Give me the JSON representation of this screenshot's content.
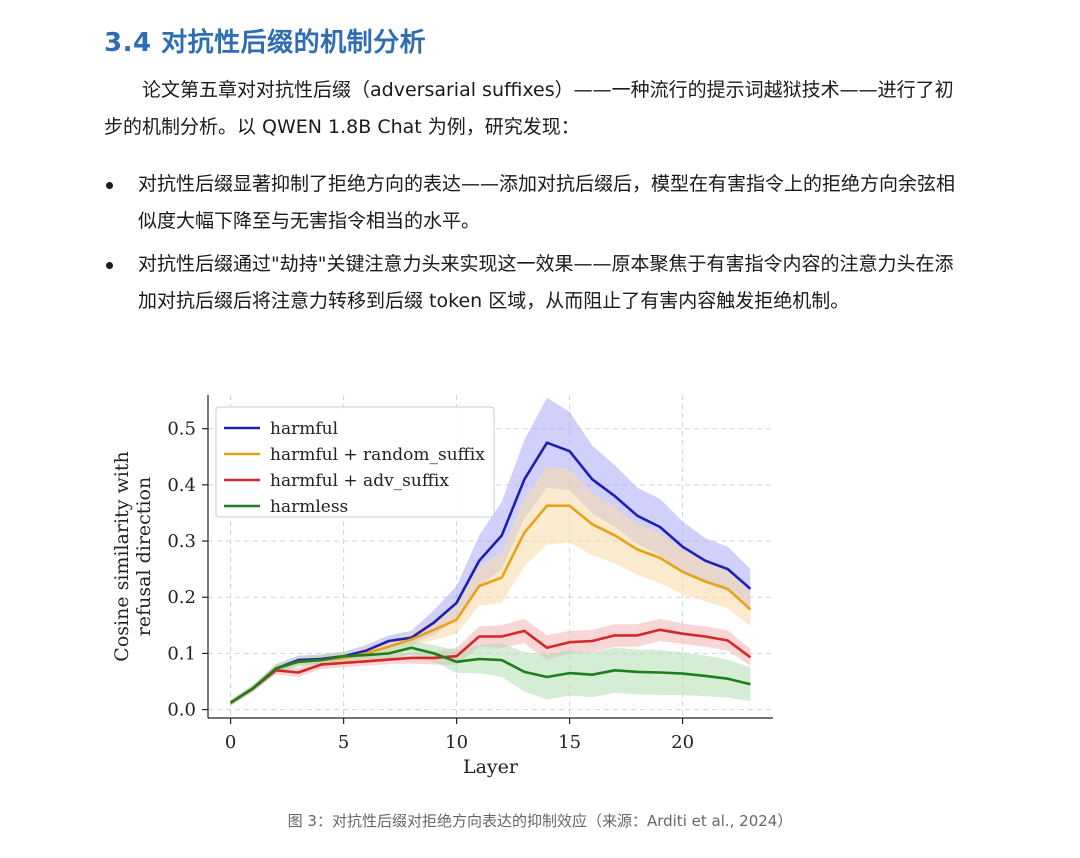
{
  "section": {
    "heading": "3.4 对抗性后缀的机制分析",
    "intro": "论文第五章对对抗性后缀（adversarial suffixes）——一种流行的提示词越狱技术——进行了初步的机制分析。以 QWEN 1.8B Chat 为例，研究发现：",
    "bullets": [
      "对抗性后缀显著抑制了拒绝方向的表达——添加对抗后缀后，模型在有害指令上的拒绝方向余弦相似度大幅下降至与无害指令相当的水平。",
      "对抗性后缀通过\"劫持\"关键注意力头来实现这一效果——原本聚焦于有害指令内容的注意力头在添加对抗后缀后将注意力转移到后缀 token 区域，从而阻止了有害内容触发拒绝机制。"
    ],
    "caption": "图 3：对抗性后缀对拒绝方向表达的抑制效应（来源：Arditi et al., 2024）"
  },
  "chart_data": {
    "type": "line",
    "xlabel": "Layer",
    "ylabel_line1": "Cosine similarity with",
    "ylabel_line2": "refusal direction",
    "xlim": [
      -1,
      24
    ],
    "ylim": [
      -0.015,
      0.56
    ],
    "xticks": [
      0,
      5,
      10,
      15,
      20
    ],
    "yticks": [
      0.0,
      0.1,
      0.2,
      0.3,
      0.4,
      0.5
    ],
    "ytick_labels": [
      "0.0",
      "0.1",
      "0.2",
      "0.3",
      "0.4",
      "0.5"
    ],
    "grid": true,
    "legend_position": "top-left",
    "x": [
      0,
      1,
      2,
      3,
      4,
      5,
      6,
      7,
      8,
      9,
      10,
      11,
      12,
      13,
      14,
      15,
      16,
      17,
      18,
      19,
      20,
      21,
      22,
      23
    ],
    "series": [
      {
        "name": "harmful",
        "color": "#1f1fb4",
        "fill": "#a9a9f5",
        "values": [
          0.012,
          0.038,
          0.073,
          0.088,
          0.09,
          0.095,
          0.105,
          0.122,
          0.128,
          0.155,
          0.19,
          0.265,
          0.31,
          0.41,
          0.475,
          0.46,
          0.41,
          0.38,
          0.345,
          0.325,
          0.29,
          0.265,
          0.25,
          0.215
        ],
        "band": [
          0.005,
          0.006,
          0.008,
          0.008,
          0.008,
          0.008,
          0.01,
          0.01,
          0.012,
          0.022,
          0.03,
          0.045,
          0.06,
          0.07,
          0.08,
          0.07,
          0.06,
          0.055,
          0.05,
          0.05,
          0.045,
          0.04,
          0.04,
          0.035
        ]
      },
      {
        "name": "harmful + random_suffix",
        "color": "#e8a21a",
        "fill": "#f7dba6",
        "values": [
          0.012,
          0.038,
          0.073,
          0.085,
          0.088,
          0.092,
          0.1,
          0.112,
          0.125,
          0.142,
          0.16,
          0.22,
          0.235,
          0.315,
          0.363,
          0.363,
          0.33,
          0.31,
          0.285,
          0.27,
          0.245,
          0.228,
          0.215,
          0.178
        ],
        "band": [
          0.005,
          0.006,
          0.008,
          0.008,
          0.008,
          0.008,
          0.01,
          0.01,
          0.012,
          0.018,
          0.025,
          0.035,
          0.045,
          0.06,
          0.07,
          0.065,
          0.055,
          0.05,
          0.045,
          0.045,
          0.04,
          0.035,
          0.035,
          0.03
        ]
      },
      {
        "name": "harmful + adv_suffix",
        "color": "#d62728",
        "fill": "#f4b4b4",
        "values": [
          0.012,
          0.038,
          0.07,
          0.066,
          0.08,
          0.083,
          0.086,
          0.089,
          0.092,
          0.092,
          0.095,
          0.13,
          0.13,
          0.14,
          0.11,
          0.12,
          0.122,
          0.132,
          0.132,
          0.142,
          0.135,
          0.13,
          0.123,
          0.093
        ],
        "band": [
          0.005,
          0.006,
          0.008,
          0.008,
          0.008,
          0.008,
          0.008,
          0.008,
          0.01,
          0.012,
          0.015,
          0.018,
          0.02,
          0.022,
          0.022,
          0.02,
          0.02,
          0.02,
          0.02,
          0.02,
          0.018,
          0.018,
          0.018,
          0.015
        ]
      },
      {
        "name": "harmless",
        "color": "#1e7d1e",
        "fill": "#b3dcb3",
        "values": [
          0.012,
          0.038,
          0.073,
          0.085,
          0.088,
          0.095,
          0.097,
          0.1,
          0.11,
          0.1,
          0.085,
          0.09,
          0.088,
          0.067,
          0.058,
          0.065,
          0.062,
          0.07,
          0.067,
          0.066,
          0.064,
          0.06,
          0.055,
          0.045
        ],
        "band": [
          0.005,
          0.006,
          0.008,
          0.008,
          0.008,
          0.008,
          0.008,
          0.01,
          0.012,
          0.015,
          0.02,
          0.025,
          0.03,
          0.035,
          0.04,
          0.04,
          0.04,
          0.04,
          0.04,
          0.04,
          0.038,
          0.036,
          0.034,
          0.03
        ]
      }
    ]
  }
}
